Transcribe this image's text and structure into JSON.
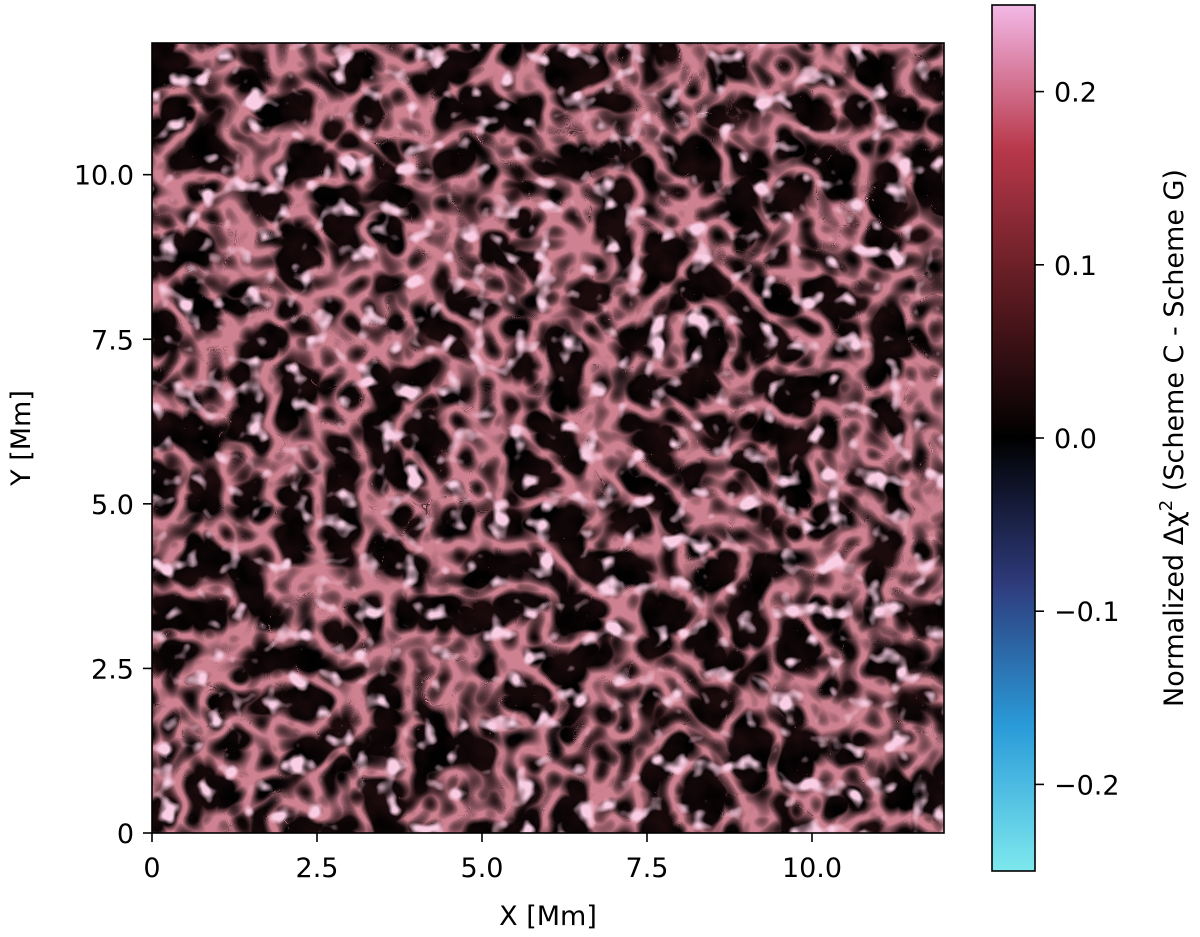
{
  "chart_data": {
    "type": "heatmap",
    "title": "",
    "xlabel": "X [Mm]",
    "ylabel": "Y [Mm]",
    "xlim": [
      0,
      12
    ],
    "ylim": [
      0,
      12
    ],
    "x_ticks": [
      "0",
      "2.5",
      "5.0",
      "7.5",
      "10.0"
    ],
    "x_tick_values": [
      0,
      2.5,
      5.0,
      7.5,
      10.0
    ],
    "y_ticks": [
      "0",
      "2.5",
      "5.0",
      "7.5",
      "10.0"
    ],
    "y_tick_values": [
      0,
      2.5,
      5.0,
      7.5,
      10.0
    ],
    "grid": false,
    "colorbar": {
      "label": "Normalized Δχ² (Scheme C - Scheme G)",
      "label_prefix": "Normalized Δχ",
      "label_sup": "2",
      "label_suffix": " (Scheme C - Scheme G)",
      "vmin": -0.25,
      "vmax": 0.25,
      "ticks": [
        "−0.2",
        "−0.1",
        "0.0",
        "0.1",
        "0.2"
      ],
      "tick_values": [
        -0.2,
        -0.1,
        0.0,
        0.1,
        0.2
      ],
      "colormap": [
        "#7ee8ee",
        "#2a9bd9",
        "#2e3a7a",
        "#000000",
        "#5a1a20",
        "#b8384a",
        "#f3b8e6"
      ]
    },
    "dominant_colors": {
      "background": "#1a0c0e",
      "lanes": "#8a3a44",
      "bright": "#f2a4cc"
    }
  }
}
